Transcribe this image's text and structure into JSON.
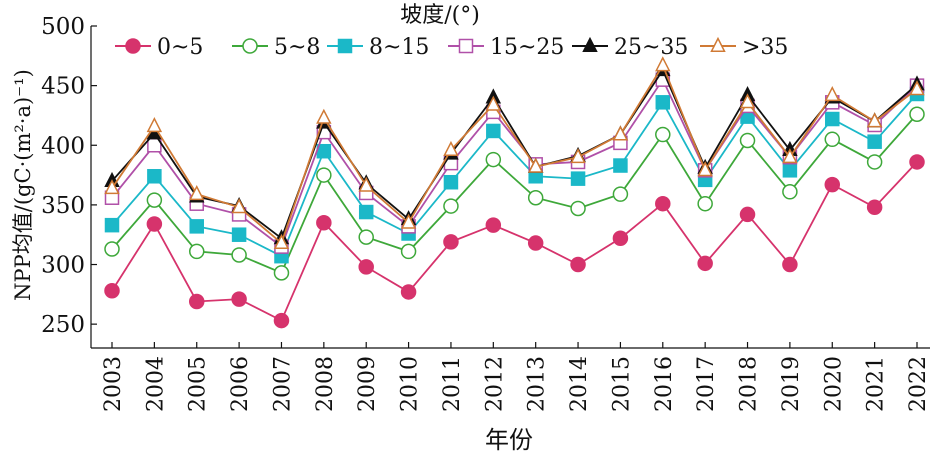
{
  "chart_data": {
    "type": "line",
    "title": "",
    "legend_title": "坡度/(°)",
    "legend_position": "top",
    "xlabel": "年份",
    "ylabel": "NPP均值/(gC·(m²·a)⁻¹)",
    "ylim": [
      230,
      500
    ],
    "yticks": [
      250,
      300,
      350,
      400,
      450,
      500
    ],
    "grid": false,
    "x": [
      "2003",
      "2004",
      "2005",
      "2006",
      "2007",
      "2008",
      "2009",
      "2010",
      "2011",
      "2012",
      "2013",
      "2014",
      "2015",
      "2016",
      "2017",
      "2018",
      "2019",
      "2020",
      "2021",
      "2022"
    ],
    "series": [
      {
        "name": "0~5",
        "color": "#d6336c",
        "marker": "circle-filled",
        "values": [
          278,
          334,
          269,
          271,
          253,
          335,
          298,
          277,
          319,
          333,
          318,
          300,
          322,
          351,
          301,
          342,
          300,
          367,
          348,
          386
        ]
      },
      {
        "name": "5~8",
        "color": "#3ea83a",
        "marker": "circle-open",
        "values": [
          313,
          354,
          311,
          308,
          293,
          375,
          323,
          311,
          349,
          388,
          356,
          347,
          359,
          409,
          351,
          404,
          361,
          405,
          386,
          426
        ]
      },
      {
        "name": "8~15",
        "color": "#1bb8c8",
        "marker": "square-filled",
        "values": [
          333,
          374,
          332,
          325,
          307,
          395,
          344,
          326,
          369,
          412,
          374,
          372,
          383,
          436,
          371,
          424,
          379,
          422,
          403,
          443
        ]
      },
      {
        "name": "15~25",
        "color": "#b050a8",
        "marker": "square-open",
        "values": [
          356,
          400,
          351,
          342,
          315,
          411,
          360,
          332,
          385,
          428,
          384,
          386,
          402,
          455,
          379,
          433,
          390,
          436,
          417,
          450
        ]
      },
      {
        "name": "25~35",
        "color": "#111111",
        "marker": "triangle-filled",
        "values": [
          370,
          410,
          357,
          349,
          322,
          419,
          368,
          338,
          393,
          440,
          382,
          391,
          409,
          463,
          381,
          442,
          396,
          440,
          420,
          451
        ]
      },
      {
        "name": ">35",
        "color": "#d07a35",
        "marker": "triangle-open",
        "values": [
          364,
          416,
          359,
          348,
          318,
          423,
          366,
          335,
          396,
          434,
          382,
          390,
          409,
          467,
          379,
          436,
          390,
          442,
          420,
          447
        ]
      }
    ]
  }
}
